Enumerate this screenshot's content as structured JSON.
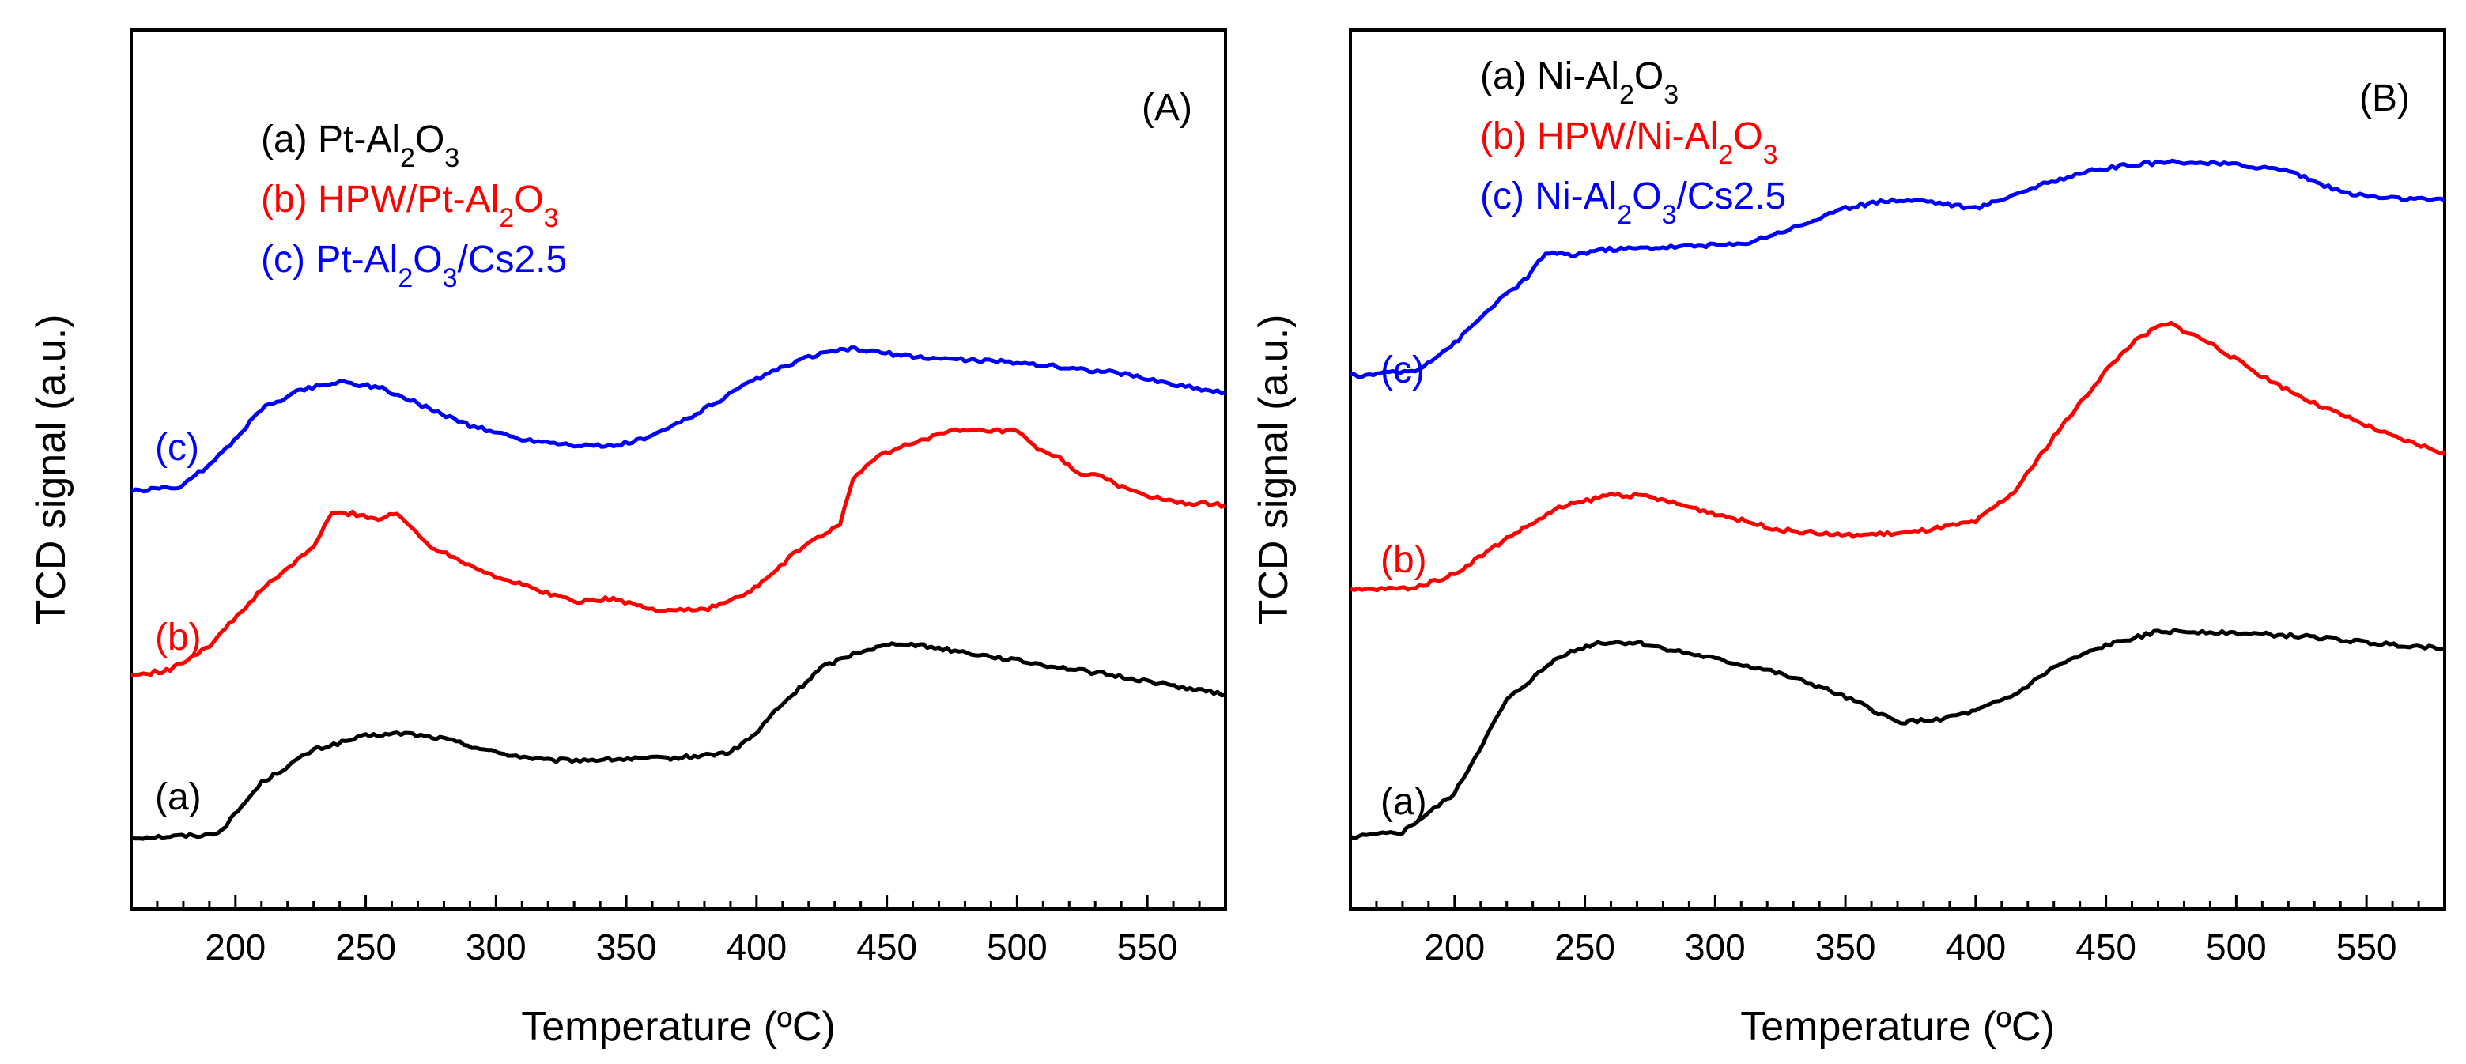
{
  "chart_data": [
    {
      "panel": "(A)",
      "type": "line",
      "xlabel": "Temperature (ºC)",
      "ylabel": "TCD signal (a.u.)",
      "xlim": [
        160,
        580
      ],
      "ylim": [
        0,
        16
      ],
      "xticks": [
        "200",
        "250",
        "300",
        "350",
        "400",
        "450",
        "500",
        "550"
      ],
      "yticks": false,
      "legend_position": "top-left",
      "legend": [
        {
          "key": "a",
          "parts": [
            {
              "text": "(a) Pt-Al"
            },
            {
              "text": "2",
              "sub": true
            },
            {
              "text": "O"
            },
            {
              "text": "3",
              "sub": true
            }
          ]
        },
        {
          "key": "b",
          "parts": [
            {
              "text": "(b) HPW/Pt-Al"
            },
            {
              "text": "2",
              "sub": true
            },
            {
              "text": "O"
            },
            {
              "text": "3",
              "sub": true
            }
          ]
        },
        {
          "key": "c",
          "parts": [
            {
              "text": "(c) Pt-Al"
            },
            {
              "text": "2",
              "sub": true
            },
            {
              "text": "O"
            },
            {
              "text": "3",
              "sub": true
            },
            {
              "text": "/Cs2.5"
            }
          ]
        }
      ],
      "series": [
        {
          "name": "(a) Pt-Al2O3",
          "label": "(a)",
          "color": "#000000",
          "x": [
            160,
            190,
            195,
            210,
            230,
            250,
            265,
            280,
            300,
            320,
            340,
            370,
            390,
            400,
            407,
            415,
            425,
            440,
            455,
            470,
            490,
            510,
            530,
            550,
            580
          ],
          "y": [
            1.3,
            1.35,
            1.45,
            2.3,
            2.9,
            3.15,
            3.2,
            3.1,
            2.85,
            2.7,
            2.72,
            2.75,
            2.85,
            3.2,
            3.6,
            3.95,
            4.4,
            4.7,
            4.85,
            4.75,
            4.6,
            4.45,
            4.3,
            4.15,
            3.9
          ]
        },
        {
          "name": "(b) HPW/Pt-Al2O3",
          "label": "(b)",
          "color": "#ff0000",
          "x": [
            160,
            175,
            190,
            210,
            230,
            237,
            245,
            255,
            262,
            275,
            300,
            330,
            345,
            360,
            380,
            395,
            405,
            415,
            425,
            432,
            437,
            445,
            460,
            475,
            490,
            500,
            508,
            515,
            523,
            530,
            545,
            560,
            580
          ],
          "y": [
            4.25,
            4.35,
            4.8,
            5.8,
            6.6,
            7.2,
            7.2,
            7.1,
            7.2,
            6.6,
            6.05,
            5.6,
            5.65,
            5.45,
            5.45,
            5.7,
            6.05,
            6.5,
            6.8,
            7.0,
            7.8,
            8.2,
            8.5,
            8.7,
            8.7,
            8.7,
            8.35,
            8.25,
            7.95,
            7.9,
            7.6,
            7.4,
            7.35
          ]
        },
        {
          "name": "(c) Pt-Al2O3/Cs2.5",
          "label": "(c)",
          "color": "#0000ff",
          "x": [
            160,
            180,
            195,
            210,
            225,
            240,
            255,
            270,
            290,
            310,
            330,
            345,
            360,
            380,
            400,
            420,
            435,
            445,
            460,
            480,
            500,
            520,
            540,
            560,
            580
          ],
          "y": [
            7.6,
            7.7,
            8.3,
            9.1,
            9.45,
            9.6,
            9.5,
            9.2,
            8.8,
            8.55,
            8.45,
            8.42,
            8.6,
            9.1,
            9.65,
            10.05,
            10.2,
            10.15,
            10.05,
            10.0,
            9.95,
            9.85,
            9.75,
            9.55,
            9.4
          ]
        }
      ]
    },
    {
      "panel": "(B)",
      "type": "line",
      "xlabel": "Temperature (ºC)",
      "ylabel": "TCD signal (a.u.)",
      "xlim": [
        160,
        580
      ],
      "ylim": [
        0,
        16
      ],
      "xticks": [
        "200",
        "250",
        "300",
        "350",
        "400",
        "450",
        "500",
        "550"
      ],
      "yticks": false,
      "legend_position": "top-left",
      "legend": [
        {
          "key": "a",
          "parts": [
            {
              "text": "(a) Ni-Al"
            },
            {
              "text": "2",
              "sub": true
            },
            {
              "text": "O"
            },
            {
              "text": "3",
              "sub": true
            }
          ]
        },
        {
          "key": "b",
          "parts": [
            {
              "text": "(b) HPW/Ni-Al"
            },
            {
              "text": "2",
              "sub": true
            },
            {
              "text": "O"
            },
            {
              "text": "3",
              "sub": true
            }
          ]
        },
        {
          "key": "c",
          "parts": [
            {
              "text": "(c) Ni-Al"
            },
            {
              "text": "2",
              "sub": true
            },
            {
              "text": "O"
            },
            {
              "text": "3",
              "sub": true
            },
            {
              "text": "/Cs2.5"
            }
          ]
        }
      ],
      "series": [
        {
          "name": "(a) Ni-Al2O3",
          "label": "(a)",
          "color": "#000000",
          "x": [
            160,
            180,
            200,
            220,
            240,
            255,
            270,
            280,
            300,
            320,
            340,
            355,
            370,
            385,
            400,
            415,
            430,
            450,
            470,
            490,
            510,
            530,
            550,
            580
          ],
          "y": [
            1.3,
            1.4,
            2.1,
            3.8,
            4.6,
            4.85,
            4.85,
            4.75,
            4.55,
            4.35,
            4.05,
            3.75,
            3.4,
            3.45,
            3.6,
            3.9,
            4.4,
            4.8,
            5.05,
            5.05,
            5.0,
            4.95,
            4.85,
            4.75
          ]
        },
        {
          "name": "(b) HPW/Ni-Al2O3",
          "label": "(b)",
          "color": "#ff0000",
          "x": [
            160,
            185,
            200,
            220,
            240,
            260,
            275,
            300,
            325,
            350,
            375,
            400,
            415,
            430,
            440,
            450,
            460,
            470,
            475,
            490,
            510,
            530,
            560,
            580
          ],
          "y": [
            5.8,
            5.85,
            6.1,
            6.75,
            7.3,
            7.55,
            7.5,
            7.2,
            6.9,
            6.8,
            6.85,
            7.05,
            7.6,
            8.6,
            9.2,
            9.8,
            10.3,
            10.6,
            10.65,
            10.3,
            9.7,
            9.2,
            8.6,
            8.3
          ]
        },
        {
          "name": "(c) Ni-Al2O3/Cs2.5",
          "label": "(c)",
          "color": "#0000ff",
          "x": [
            160,
            185,
            200,
            215,
            228,
            235,
            245,
            255,
            280,
            310,
            330,
            350,
            365,
            380,
            400,
            420,
            440,
            460,
            480,
            500,
            520,
            540,
            555,
            580
          ],
          "y": [
            9.7,
            9.8,
            10.3,
            11.0,
            11.5,
            11.95,
            11.9,
            12.0,
            12.05,
            12.1,
            12.4,
            12.75,
            12.9,
            12.9,
            12.75,
            13.1,
            13.4,
            13.55,
            13.6,
            13.55,
            13.45,
            13.05,
            12.95,
            12.9
          ]
        }
      ]
    }
  ]
}
